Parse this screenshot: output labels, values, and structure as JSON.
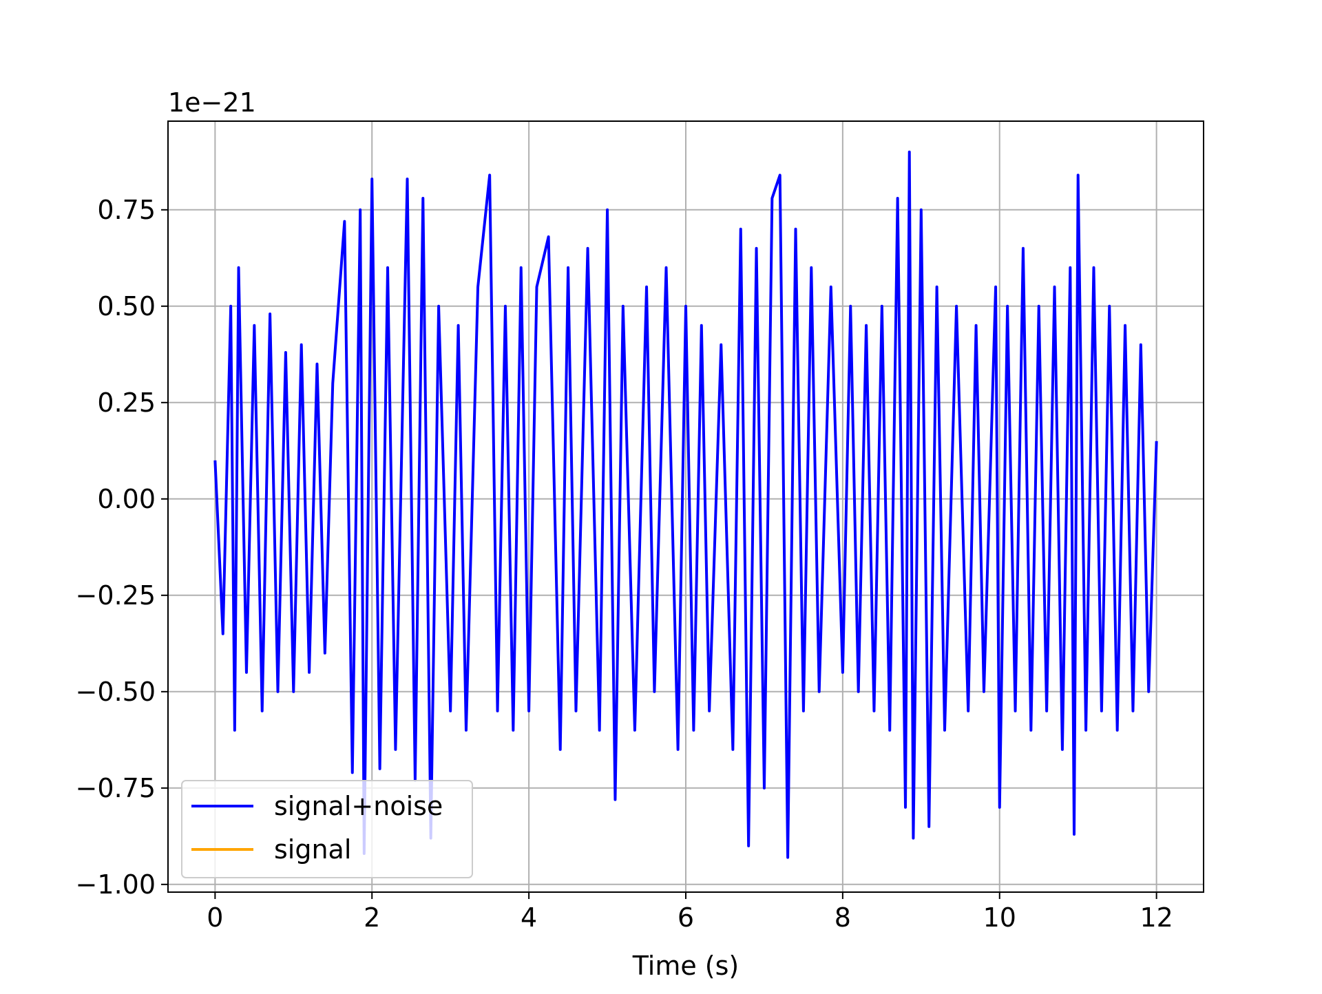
{
  "chart_data": {
    "type": "line",
    "title": "",
    "xlabel": "Time (s)",
    "ylabel": "",
    "y_scale_label": "1e−21",
    "xlim": [
      -0.6,
      12.6
    ],
    "ylim": [
      -1.02,
      0.98
    ],
    "x_ticks": [
      0,
      2,
      4,
      6,
      8,
      10,
      12
    ],
    "x_tick_labels": [
      "0",
      "2",
      "4",
      "6",
      "8",
      "10",
      "12"
    ],
    "y_ticks": [
      -1.0,
      -0.75,
      -0.5,
      -0.25,
      0.0,
      0.25,
      0.5,
      0.75
    ],
    "y_tick_labels": [
      "−1.00",
      "−0.75",
      "−0.50",
      "−0.25",
      "0.00",
      "0.25",
      "0.50",
      "0.75"
    ],
    "grid": true,
    "legend_position": "lower-left",
    "series": [
      {
        "name": "signal+noise",
        "color": "#0000ff",
        "x": [
          0,
          0.1,
          0.2,
          0.25,
          0.3,
          0.4,
          0.5,
          0.6,
          0.7,
          0.8,
          0.9,
          1.0,
          1.1,
          1.2,
          1.3,
          1.4,
          1.5,
          1.65,
          1.75,
          1.85,
          1.9,
          2.0,
          2.1,
          2.2,
          2.3,
          2.45,
          2.55,
          2.65,
          2.75,
          2.85,
          3.0,
          3.1,
          3.2,
          3.35,
          3.5,
          3.6,
          3.7,
          3.8,
          3.9,
          4.0,
          4.1,
          4.25,
          4.4,
          4.5,
          4.6,
          4.75,
          4.9,
          5.0,
          5.1,
          5.2,
          5.35,
          5.5,
          5.6,
          5.75,
          5.9,
          6.0,
          6.1,
          6.2,
          6.3,
          6.45,
          6.6,
          6.7,
          6.8,
          6.9,
          7.0,
          7.1,
          7.2,
          7.3,
          7.4,
          7.5,
          7.6,
          7.7,
          7.85,
          8.0,
          8.1,
          8.2,
          8.3,
          8.4,
          8.5,
          8.6,
          8.7,
          8.8,
          8.85,
          8.9,
          9.0,
          9.1,
          9.2,
          9.3,
          9.45,
          9.6,
          9.7,
          9.8,
          9.95,
          10.0,
          10.1,
          10.2,
          10.3,
          10.4,
          10.5,
          10.6,
          10.7,
          10.8,
          10.9,
          10.95,
          11.0,
          11.1,
          11.2,
          11.3,
          11.4,
          11.5,
          11.6,
          11.7,
          11.8,
          11.9,
          12.0
        ],
        "y": [
          0.1,
          -0.35,
          0.5,
          -0.6,
          0.6,
          -0.45,
          0.45,
          -0.55,
          0.48,
          -0.5,
          0.38,
          -0.5,
          0.4,
          -0.45,
          0.35,
          -0.4,
          0.3,
          0.72,
          -0.71,
          0.75,
          -0.92,
          0.83,
          -0.7,
          0.6,
          -0.65,
          0.83,
          -0.73,
          0.78,
          -0.88,
          0.5,
          -0.55,
          0.45,
          -0.6,
          0.55,
          0.84,
          -0.55,
          0.5,
          -0.6,
          0.6,
          -0.55,
          0.55,
          0.68,
          -0.65,
          0.6,
          -0.55,
          0.65,
          -0.6,
          0.75,
          -0.78,
          0.5,
          -0.6,
          0.55,
          -0.5,
          0.6,
          -0.65,
          0.5,
          -0.6,
          0.45,
          -0.55,
          0.4,
          -0.65,
          0.7,
          -0.9,
          0.65,
          -0.75,
          0.78,
          0.84,
          -0.93,
          0.7,
          -0.55,
          0.6,
          -0.5,
          0.55,
          -0.45,
          0.5,
          -0.5,
          0.45,
          -0.55,
          0.5,
          -0.6,
          0.78,
          -0.8,
          0.9,
          -0.88,
          0.75,
          -0.85,
          0.55,
          -0.6,
          0.5,
          -0.55,
          0.45,
          -0.5,
          0.55,
          -0.8,
          0.5,
          -0.55,
          0.65,
          -0.6,
          0.5,
          -0.55,
          0.55,
          -0.65,
          0.6,
          -0.87,
          0.84,
          -0.6,
          0.6,
          -0.55,
          0.5,
          -0.6,
          0.45,
          -0.55,
          0.4,
          -0.5,
          0.15
        ]
      },
      {
        "name": "signal",
        "color": "#ffa500",
        "x": [],
        "y": []
      }
    ]
  }
}
